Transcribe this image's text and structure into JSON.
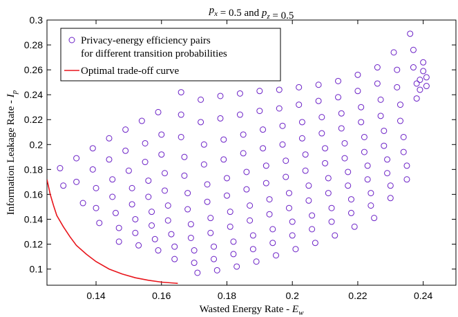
{
  "chart_data": {
    "type": "scatter",
    "title": "p_x = 0.5 and p_z = 0.5",
    "xlabel": "Wasted Energy Rate - E_w",
    "ylabel": "Information Leakage Rate - I_p",
    "xlim": [
      0.125,
      0.25
    ],
    "ylim": [
      0.087,
      0.3
    ],
    "x_ticks": [
      "0.14",
      "0.16",
      "0.18",
      "0.2",
      "0.22",
      "0.24"
    ],
    "x_tick_values": [
      0.14,
      0.16,
      0.18,
      0.2,
      0.22,
      0.24
    ],
    "y_ticks": [
      "0.1",
      "0.12",
      "0.14",
      "0.16",
      "0.18",
      "0.2",
      "0.22",
      "0.24",
      "0.26",
      "0.28",
      "0.3"
    ],
    "y_tick_values": [
      0.1,
      0.12,
      0.14,
      0.16,
      0.18,
      0.2,
      0.22,
      0.24,
      0.26,
      0.28,
      0.3
    ],
    "grid": false,
    "legend_position": "top-left",
    "colors": {
      "scatter": "#6a1fc6",
      "curve": "#e8141b"
    },
    "series": [
      {
        "name": "Privacy-energy efficiency pairs\nfor different transition probabilities",
        "legend_lines": [
          "Privacy-energy efficiency pairs",
          "for different transition probabilities"
        ],
        "kind": "scatter",
        "points": [
          [
            0.129,
            0.181
          ],
          [
            0.13,
            0.167
          ],
          [
            0.134,
            0.189
          ],
          [
            0.134,
            0.17
          ],
          [
            0.136,
            0.153
          ],
          [
            0.139,
            0.197
          ],
          [
            0.139,
            0.18
          ],
          [
            0.14,
            0.165
          ],
          [
            0.14,
            0.149
          ],
          [
            0.141,
            0.137
          ],
          [
            0.144,
            0.205
          ],
          [
            0.144,
            0.188
          ],
          [
            0.145,
            0.172
          ],
          [
            0.145,
            0.158
          ],
          [
            0.146,
            0.145
          ],
          [
            0.147,
            0.133
          ],
          [
            0.147,
            0.122
          ],
          [
            0.149,
            0.212
          ],
          [
            0.149,
            0.195
          ],
          [
            0.15,
            0.179
          ],
          [
            0.151,
            0.165
          ],
          [
            0.151,
            0.152
          ],
          [
            0.152,
            0.14
          ],
          [
            0.152,
            0.129
          ],
          [
            0.153,
            0.119
          ],
          [
            0.154,
            0.219
          ],
          [
            0.155,
            0.201
          ],
          [
            0.155,
            0.186
          ],
          [
            0.156,
            0.171
          ],
          [
            0.156,
            0.158
          ],
          [
            0.157,
            0.146
          ],
          [
            0.157,
            0.135
          ],
          [
            0.158,
            0.124
          ],
          [
            0.159,
            0.115
          ],
          [
            0.159,
            0.226
          ],
          [
            0.16,
            0.208
          ],
          [
            0.16,
            0.192
          ],
          [
            0.161,
            0.177
          ],
          [
            0.161,
            0.163
          ],
          [
            0.162,
            0.151
          ],
          [
            0.162,
            0.139
          ],
          [
            0.163,
            0.128
          ],
          [
            0.164,
            0.118
          ],
          [
            0.164,
            0.108
          ],
          [
            0.166,
            0.242
          ],
          [
            0.166,
            0.224
          ],
          [
            0.166,
            0.206
          ],
          [
            0.167,
            0.19
          ],
          [
            0.167,
            0.175
          ],
          [
            0.168,
            0.161
          ],
          [
            0.168,
            0.148
          ],
          [
            0.169,
            0.136
          ],
          [
            0.169,
            0.125
          ],
          [
            0.17,
            0.115
          ],
          [
            0.17,
            0.105
          ],
          [
            0.171,
            0.097
          ],
          [
            0.172,
            0.236
          ],
          [
            0.172,
            0.218
          ],
          [
            0.173,
            0.2
          ],
          [
            0.173,
            0.184
          ],
          [
            0.174,
            0.168
          ],
          [
            0.174,
            0.154
          ],
          [
            0.175,
            0.141
          ],
          [
            0.175,
            0.129
          ],
          [
            0.176,
            0.118
          ],
          [
            0.176,
            0.108
          ],
          [
            0.177,
            0.099
          ],
          [
            0.178,
            0.239
          ],
          [
            0.178,
            0.221
          ],
          [
            0.179,
            0.204
          ],
          [
            0.179,
            0.188
          ],
          [
            0.18,
            0.173
          ],
          [
            0.18,
            0.159
          ],
          [
            0.181,
            0.146
          ],
          [
            0.181,
            0.134
          ],
          [
            0.182,
            0.122
          ],
          [
            0.182,
            0.112
          ],
          [
            0.183,
            0.102
          ],
          [
            0.184,
            0.241
          ],
          [
            0.184,
            0.224
          ],
          [
            0.185,
            0.208
          ],
          [
            0.185,
            0.193
          ],
          [
            0.186,
            0.178
          ],
          [
            0.186,
            0.164
          ],
          [
            0.187,
            0.151
          ],
          [
            0.187,
            0.139
          ],
          [
            0.188,
            0.127
          ],
          [
            0.188,
            0.116
          ],
          [
            0.189,
            0.106
          ],
          [
            0.19,
            0.243
          ],
          [
            0.19,
            0.227
          ],
          [
            0.191,
            0.212
          ],
          [
            0.191,
            0.197
          ],
          [
            0.192,
            0.183
          ],
          [
            0.192,
            0.169
          ],
          [
            0.193,
            0.156
          ],
          [
            0.193,
            0.144
          ],
          [
            0.194,
            0.132
          ],
          [
            0.194,
            0.121
          ],
          [
            0.195,
            0.111
          ],
          [
            0.196,
            0.244
          ],
          [
            0.196,
            0.229
          ],
          [
            0.197,
            0.215
          ],
          [
            0.197,
            0.2
          ],
          [
            0.198,
            0.187
          ],
          [
            0.198,
            0.174
          ],
          [
            0.199,
            0.161
          ],
          [
            0.199,
            0.149
          ],
          [
            0.2,
            0.138
          ],
          [
            0.2,
            0.127
          ],
          [
            0.201,
            0.116
          ],
          [
            0.202,
            0.246
          ],
          [
            0.202,
            0.232
          ],
          [
            0.203,
            0.218
          ],
          [
            0.203,
            0.205
          ],
          [
            0.204,
            0.192
          ],
          [
            0.204,
            0.179
          ],
          [
            0.205,
            0.167
          ],
          [
            0.205,
            0.155
          ],
          [
            0.206,
            0.143
          ],
          [
            0.206,
            0.132
          ],
          [
            0.207,
            0.121
          ],
          [
            0.208,
            0.248
          ],
          [
            0.208,
            0.235
          ],
          [
            0.209,
            0.222
          ],
          [
            0.209,
            0.209
          ],
          [
            0.21,
            0.197
          ],
          [
            0.21,
            0.185
          ],
          [
            0.211,
            0.173
          ],
          [
            0.211,
            0.161
          ],
          [
            0.212,
            0.149
          ],
          [
            0.212,
            0.138
          ],
          [
            0.213,
            0.127
          ],
          [
            0.214,
            0.251
          ],
          [
            0.214,
            0.238
          ],
          [
            0.215,
            0.225
          ],
          [
            0.215,
            0.213
          ],
          [
            0.216,
            0.201
          ],
          [
            0.216,
            0.189
          ],
          [
            0.217,
            0.178
          ],
          [
            0.217,
            0.167
          ],
          [
            0.218,
            0.156
          ],
          [
            0.218,
            0.145
          ],
          [
            0.219,
            0.134
          ],
          [
            0.22,
            0.256
          ],
          [
            0.22,
            0.243
          ],
          [
            0.221,
            0.23
          ],
          [
            0.221,
            0.218
          ],
          [
            0.222,
            0.206
          ],
          [
            0.222,
            0.194
          ],
          [
            0.223,
            0.183
          ],
          [
            0.223,
            0.172
          ],
          [
            0.224,
            0.161
          ],
          [
            0.224,
            0.151
          ],
          [
            0.225,
            0.141
          ],
          [
            0.226,
            0.262
          ],
          [
            0.226,
            0.249
          ],
          [
            0.227,
            0.236
          ],
          [
            0.227,
            0.223
          ],
          [
            0.228,
            0.211
          ],
          [
            0.228,
            0.199
          ],
          [
            0.229,
            0.188
          ],
          [
            0.229,
            0.177
          ],
          [
            0.23,
            0.167
          ],
          [
            0.23,
            0.157
          ],
          [
            0.231,
            0.274
          ],
          [
            0.232,
            0.26
          ],
          [
            0.232,
            0.246
          ],
          [
            0.233,
            0.232
          ],
          [
            0.233,
            0.219
          ],
          [
            0.234,
            0.206
          ],
          [
            0.234,
            0.194
          ],
          [
            0.235,
            0.183
          ],
          [
            0.235,
            0.172
          ],
          [
            0.236,
            0.289
          ],
          [
            0.237,
            0.276
          ],
          [
            0.237,
            0.262
          ],
          [
            0.238,
            0.249
          ],
          [
            0.238,
            0.237
          ],
          [
            0.239,
            0.244
          ],
          [
            0.239,
            0.252
          ],
          [
            0.24,
            0.259
          ],
          [
            0.24,
            0.266
          ],
          [
            0.241,
            0.254
          ],
          [
            0.241,
            0.247
          ]
        ]
      },
      {
        "name": "Optimal trade-off curve",
        "kind": "line",
        "points": [
          [
            0.125,
            0.172
          ],
          [
            0.126,
            0.16
          ],
          [
            0.127,
            0.151
          ],
          [
            0.128,
            0.143
          ],
          [
            0.13,
            0.134
          ],
          [
            0.132,
            0.126
          ],
          [
            0.134,
            0.119
          ],
          [
            0.137,
            0.112
          ],
          [
            0.14,
            0.106
          ],
          [
            0.144,
            0.1
          ],
          [
            0.148,
            0.096
          ],
          [
            0.152,
            0.093
          ],
          [
            0.156,
            0.091
          ],
          [
            0.16,
            0.0895
          ],
          [
            0.165,
            0.0885
          ]
        ]
      }
    ]
  }
}
